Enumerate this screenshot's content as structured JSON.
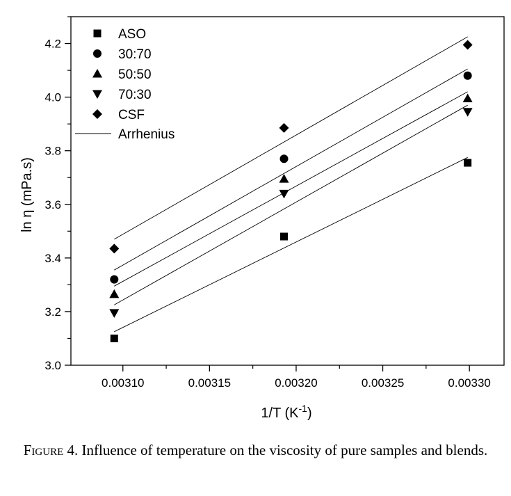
{
  "chart_data": {
    "type": "scatter",
    "xlabel_main": "1/T (K",
    "xlabel_sup": "-1",
    "xlabel_end": ")",
    "ylabel": "ln η (mPa.s)",
    "xlim": [
      0.00307,
      0.00332
    ],
    "ylim": [
      3.0,
      4.3
    ],
    "x_ticks": [
      0.0031,
      0.00315,
      0.0032,
      0.00325,
      0.0033
    ],
    "x_tick_labels": [
      "0.00310",
      "0.00315",
      "0.00320",
      "0.00325",
      "0.00330"
    ],
    "y_ticks": [
      3.0,
      3.2,
      3.4,
      3.6,
      3.8,
      4.0,
      4.2
    ],
    "y_tick_labels": [
      "3.0",
      "3.2",
      "3.4",
      "3.6",
      "3.8",
      "4.0",
      "4.2"
    ],
    "x": [
      0.003095,
      0.003193,
      0.003299
    ],
    "series": [
      {
        "name": "ASO",
        "marker": "square",
        "values": [
          3.1,
          3.48,
          3.755
        ],
        "fit": [
          3.125,
          3.775
        ]
      },
      {
        "name": "30:70",
        "marker": "circle",
        "values": [
          3.32,
          3.77,
          4.08
        ],
        "fit": [
          3.355,
          4.105
        ]
      },
      {
        "name": "50:50",
        "marker": "triangle-up",
        "values": [
          3.265,
          3.695,
          3.995
        ],
        "fit": [
          3.295,
          4.02
        ]
      },
      {
        "name": "70:30",
        "marker": "triangle-down",
        "values": [
          3.195,
          3.64,
          3.945
        ],
        "fit": [
          3.225,
          3.97
        ]
      },
      {
        "name": "CSF",
        "marker": "diamond",
        "values": [
          3.435,
          3.885,
          4.195
        ],
        "fit": [
          3.47,
          4.225
        ]
      }
    ],
    "fit_line_name": "Arrhenius",
    "legend_position": "top-left"
  },
  "caption": {
    "label": "Figure",
    "number": " 4.",
    "text": " Influence of temperature on the viscosity of pure samples and blends."
  }
}
